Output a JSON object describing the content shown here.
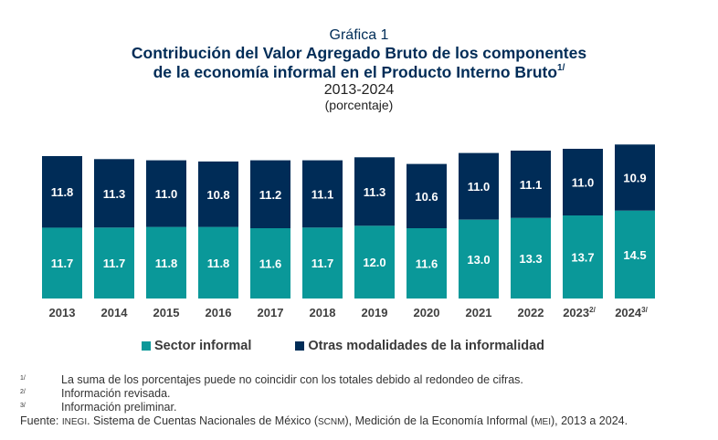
{
  "header": {
    "label": "Gráfica 1",
    "title_line1": "Contribución del Valor Agregado Bruto de los componentes",
    "title_line2": "de la economía informal en el Producto Interno Bruto",
    "title_sup": "1/",
    "period": "2013-2024",
    "unit": "(porcentaje)"
  },
  "chart_data": {
    "type": "bar",
    "stacked": true,
    "title": "Contribución del Valor Agregado Bruto de los componentes de la economía informal en el Producto Interno Bruto",
    "subtitle": "2013-2024 (porcentaje)",
    "xlabel": "",
    "ylabel": "",
    "grid": false,
    "legend_position": "bottom",
    "categories": [
      "2013",
      "2014",
      "2015",
      "2016",
      "2017",
      "2018",
      "2019",
      "2020",
      "2021",
      "2022",
      "2023",
      "2024"
    ],
    "category_superscripts": [
      "",
      "",
      "",
      "",
      "",
      "",
      "",
      "",
      "",
      "",
      "2/",
      "3/"
    ],
    "series": [
      {
        "name": "Sector informal",
        "color": "#0a9899",
        "values": [
          11.7,
          11.7,
          11.8,
          11.8,
          11.6,
          11.7,
          12.0,
          11.6,
          13.0,
          13.3,
          13.7,
          14.5
        ]
      },
      {
        "name": "Otras modalidades de la informalidad",
        "color": "#002c57",
        "values": [
          11.8,
          11.3,
          11.0,
          10.8,
          11.2,
          11.1,
          11.3,
          10.6,
          11.0,
          11.1,
          11.0,
          10.9
        ]
      }
    ],
    "ylim": [
      0,
      26
    ]
  },
  "legend": {
    "items": [
      {
        "label": "Sector informal",
        "color": "#0a9899"
      },
      {
        "label": "Otras modalidades de la informalidad",
        "color": "#002c57"
      }
    ]
  },
  "notes": [
    {
      "mark": "1/",
      "text": "La suma de los porcentajes puede no coincidir con los totales debido al redondeo de cifras."
    },
    {
      "mark": "2/",
      "text": "Información revisada."
    },
    {
      "mark": "3/",
      "text": "Información preliminar."
    }
  ],
  "source": {
    "label": "Fuente:",
    "org": "INEGI",
    "text1": ". Sistema de Cuentas Nacionales de México (",
    "abbr1": "SCNM",
    "text2": "), Medición de la Economía Informal (",
    "abbr2": "MEI",
    "text3": "), 2013 a 2024."
  }
}
